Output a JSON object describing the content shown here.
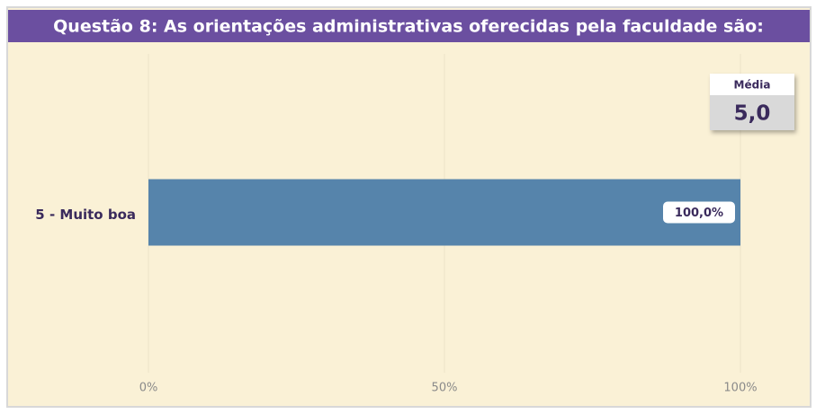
{
  "chart_data": {
    "type": "hbar",
    "title": "Questão 8: As orientações administrativas oferecidas pela faculdade são:",
    "categories": [
      "5 - Muito boa"
    ],
    "values": [
      100
    ],
    "value_labels": [
      "100,0%"
    ],
    "color": "#5684ab",
    "xlim": [
      0,
      100
    ],
    "xticks": [
      {
        "value": 0,
        "label": "0%"
      },
      {
        "value": 50,
        "label": "50%"
      },
      {
        "value": 100,
        "label": "100%"
      }
    ],
    "grid": true,
    "kpi": {
      "title": "Média",
      "value": 5,
      "value_label": "5,0"
    }
  }
}
